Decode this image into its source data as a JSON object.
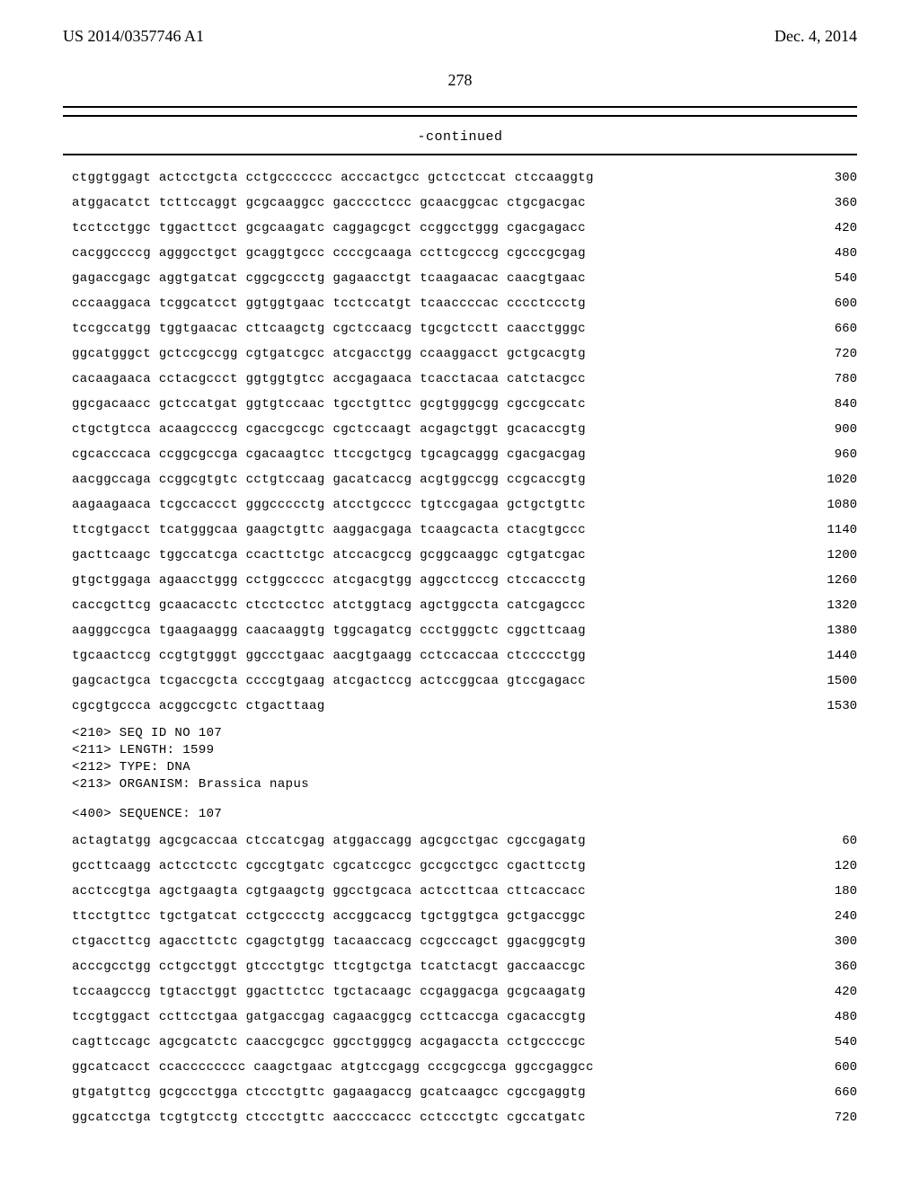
{
  "header": {
    "pub_number": "US 2014/0357746 A1",
    "pub_date": "Dec. 4, 2014",
    "page_number": "278"
  },
  "continued_label": "-continued",
  "seq107_meta": [
    "<210> SEQ ID NO 107",
    "<211> LENGTH: 1599",
    "<212> TYPE: DNA",
    "<213> ORGANISM: Brassica napus"
  ],
  "seq107_header": "<400> SEQUENCE: 107",
  "block1": [
    {
      "t": "ctggtggagt actcctgcta cctgccccccc acccactgcc gctcctccat ctccaaggtg",
      "n": "300"
    },
    {
      "t": "atggacatct tcttccaggt gcgcaaggcc gacccctccc gcaacggcac ctgcgacgac",
      "n": "360"
    },
    {
      "t": "tcctcctggc tggacttcct gcgcaagatc caggagcgct ccggcctggg cgacgagacc",
      "n": "420"
    },
    {
      "t": "cacggccccg agggcctgct gcaggtgccc ccccgcaaga ccttcgcccg cgcccgcgag",
      "n": "480"
    },
    {
      "t": "gagaccgagc aggtgatcat cggcgccctg gagaacctgt tcaagaacac caacgtgaac",
      "n": "540"
    },
    {
      "t": "cccaaggaca tcggcatcct ggtggtgaac tcctccatgt tcaaccccac cccctccctg",
      "n": "600"
    },
    {
      "t": "tccgccatgg tggtgaacac cttcaagctg cgctccaacg tgcgctcctt caacctgggc",
      "n": "660"
    },
    {
      "t": "ggcatgggct gctccgccgg cgtgatcgcc atcgacctgg ccaaggacct gctgcacgtg",
      "n": "720"
    },
    {
      "t": "cacaagaaca cctacgccct ggtggtgtcc accgagaaca tcacctacaa catctacgcc",
      "n": "780"
    },
    {
      "t": "ggcgacaacc gctccatgat ggtgtccaac tgcctgttcc gcgtgggcgg cgccgccatc",
      "n": "840"
    },
    {
      "t": "ctgctgtcca acaagccccg cgaccgccgc cgctccaagt acgagctggt gcacaccgtg",
      "n": "900"
    },
    {
      "t": "cgcacccaca ccggcgccga cgacaagtcc ttccgctgcg tgcagcaggg cgacgacgag",
      "n": "960"
    },
    {
      "t": "aacggccaga ccggcgtgtc cctgtccaag gacatcaccg acgtggccgg ccgcaccgtg",
      "n": "1020"
    },
    {
      "t": "aagaagaaca tcgccaccct gggccccctg atcctgcccc tgtccgagaa gctgctgttc",
      "n": "1080"
    },
    {
      "t": "ttcgtgacct tcatgggcaa gaagctgttc aaggacgaga tcaagcacta ctacgtgccc",
      "n": "1140"
    },
    {
      "t": "gacttcaagc tggccatcga ccacttctgc atccacgccg gcggcaaggc cgtgatcgac",
      "n": "1200"
    },
    {
      "t": "gtgctggaga agaacctggg cctggccccc atcgacgtgg aggcctcccg ctccaccctg",
      "n": "1260"
    },
    {
      "t": "caccgcttcg gcaacacctc ctcctcctcc atctggtacg agctggccta catcgagccc",
      "n": "1320"
    },
    {
      "t": "aagggccgca tgaagaaggg caacaaggtg tggcagatcg ccctgggctc cggcttcaag",
      "n": "1380"
    },
    {
      "t": "tgcaactccg ccgtgtgggt ggccctgaac aacgtgaagg cctccaccaa ctccccctgg",
      "n": "1440"
    },
    {
      "t": "gagcactgca tcgaccgcta ccccgtgaag atcgactccg actccggcaa gtccgagacc",
      "n": "1500"
    },
    {
      "t": "cgcgtgccca acggccgctc ctgacttaag",
      "n": "1530"
    }
  ],
  "block2": [
    {
      "t": "actagtatgg agcgcaccaa ctccatcgag atggaccagg agcgcctgac cgccgagatg",
      "n": "60"
    },
    {
      "t": "gccttcaagg actcctcctc cgccgtgatc cgcatccgcc gccgcctgcc cgacttcctg",
      "n": "120"
    },
    {
      "t": "acctccgtga agctgaagta cgtgaagctg ggcctgcaca actccttcaa cttcaccacc",
      "n": "180"
    },
    {
      "t": "ttcctgttcc tgctgatcat cctgcccctg accggcaccg tgctggtgca gctgaccggc",
      "n": "240"
    },
    {
      "t": "ctgaccttcg agaccttctc cgagctgtgg tacaaccacg ccgcccagct ggacggcgtg",
      "n": "300"
    },
    {
      "t": "acccgcctgg cctgcctggt gtccctgtgc ttcgtgctga tcatctacgt gaccaaccgc",
      "n": "360"
    },
    {
      "t": "tccaagcccg tgtacctggt ggacttctcc tgctacaagc ccgaggacga gcgcaagatg",
      "n": "420"
    },
    {
      "t": "tccgtggact ccttcctgaa gatgaccgag cagaacggcg ccttcaccga cgacaccgtg",
      "n": "480"
    },
    {
      "t": "cagttccagc agcgcatctc caaccgcgcc ggcctgggcg acgagaccta cctgccccgc",
      "n": "540"
    },
    {
      "t": "ggcatcacct ccacccccccc caagctgaac atgtccgagg cccgcgccga ggccgaggcc",
      "n": "600"
    },
    {
      "t": "gtgatgttcg gcgccctgga ctccctgttc gagaagaccg gcatcaagcc cgccgaggtg",
      "n": "660"
    },
    {
      "t": "ggcatcctga tcgtgtcctg ctccctgttc aaccccaccc cctccctgtc cgccatgatc",
      "n": "720"
    }
  ]
}
